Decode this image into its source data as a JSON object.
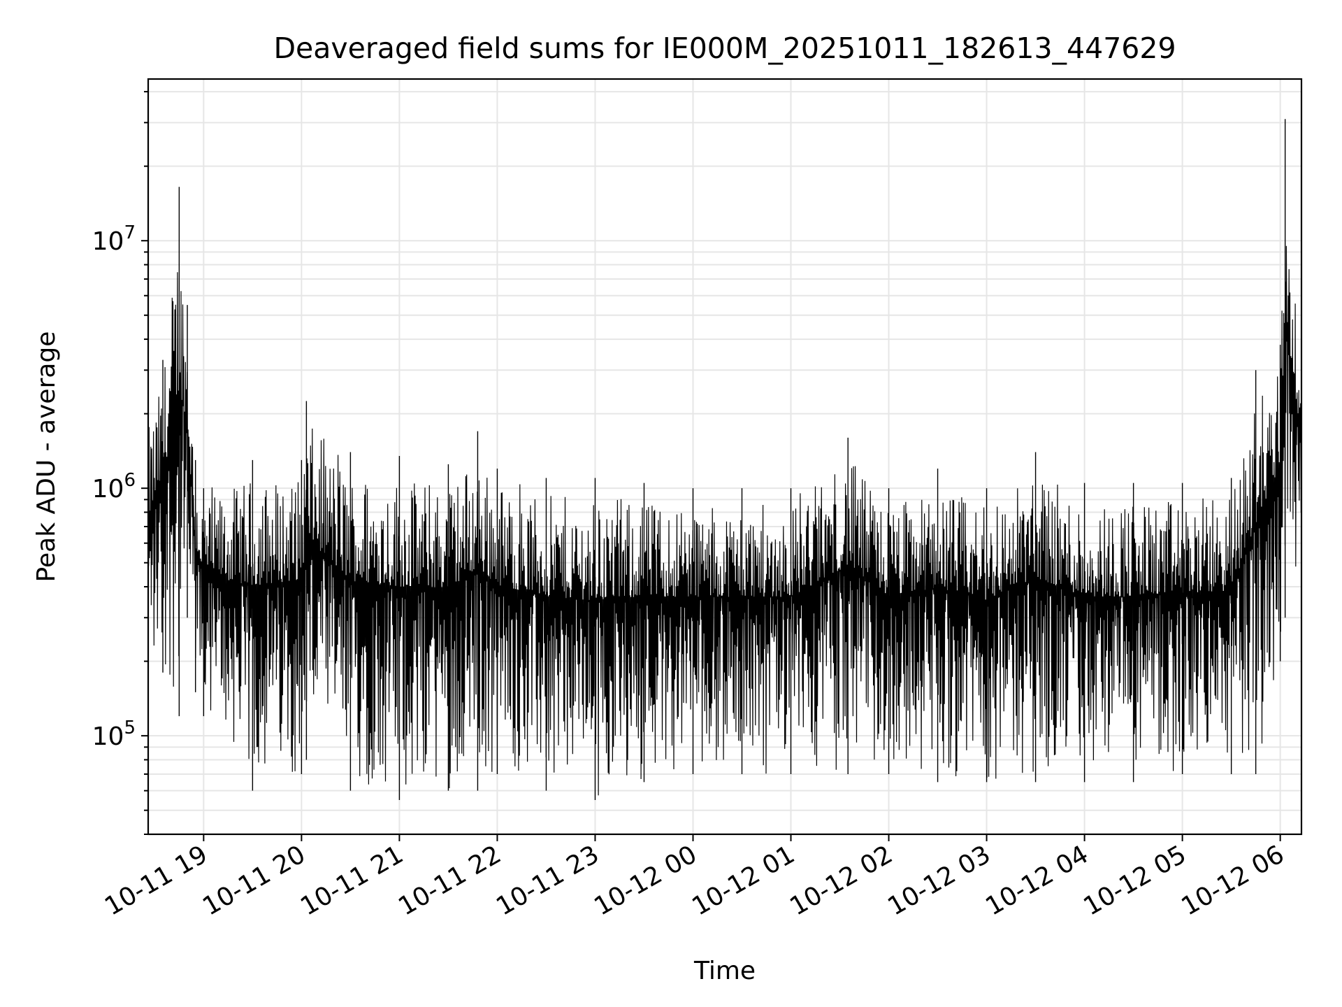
{
  "chart_data": {
    "type": "line",
    "title": "Deaveraged field sums for IE000M_20251011_182613_447629",
    "xlabel": "Time",
    "ylabel": "Peak ADU - average",
    "yscale": "log",
    "grid": true,
    "ylim": [
      40000,
      45000000
    ],
    "xlim": [
      "2025-10-11 18:26",
      "2025-10-12 06:13"
    ],
    "x_ticks": [
      "10-11 19",
      "10-11 20",
      "10-11 21",
      "10-11 22",
      "10-11 23",
      "10-12 00",
      "10-12 01",
      "10-12 02",
      "10-12 03",
      "10-12 04",
      "10-12 05",
      "10-12 06"
    ],
    "y_ticks": [
      {
        "value": 100000,
        "base": "10",
        "exp": "5"
      },
      {
        "value": 1000000,
        "base": "10",
        "exp": "6"
      },
      {
        "value": 10000000,
        "base": "10",
        "exp": "7"
      }
    ],
    "line_color": "#000000",
    "series": [
      {
        "description": "Peak ADU minus average, sampled envelope; the plotted series oscillates between low and high values",
        "x": [
          "2025-10-11 18:26",
          "2025-10-11 18:35",
          "2025-10-11 18:45",
          "2025-10-11 18:50",
          "2025-10-11 18:55",
          "2025-10-11 19:00",
          "2025-10-11 19:30",
          "2025-10-11 20:00",
          "2025-10-11 20:03",
          "2025-10-11 20:30",
          "2025-10-11 21:00",
          "2025-10-11 21:30",
          "2025-10-11 21:48",
          "2025-10-11 22:00",
          "2025-10-11 22:30",
          "2025-10-11 23:00",
          "2025-10-11 23:30",
          "2025-10-12 00:00",
          "2025-10-12 00:30",
          "2025-10-12 01:00",
          "2025-10-12 01:35",
          "2025-10-12 02:00",
          "2025-10-12 02:30",
          "2025-10-12 03:00",
          "2025-10-12 03:30",
          "2025-10-12 04:00",
          "2025-10-12 04:30",
          "2025-10-12 05:00",
          "2025-10-12 05:30",
          "2025-10-12 05:45",
          "2025-10-12 06:00",
          "2025-10-12 06:03",
          "2025-10-12 06:13"
        ],
        "high": [
          2000000,
          3300000,
          16500000,
          5500000,
          1300000,
          1000000,
          1300000,
          1300000,
          2250000,
          1400000,
          1350000,
          1250000,
          1700000,
          1200000,
          1100000,
          1100000,
          1050000,
          1000000,
          1000000,
          1000000,
          1600000,
          1000000,
          1200000,
          1000000,
          1400000,
          1050000,
          1050000,
          1050000,
          1100000,
          3000000,
          3800000,
          31000000,
          2500000
        ],
        "low": [
          150000,
          180000,
          120000,
          300000,
          150000,
          120000,
          60000,
          70000,
          80000,
          60000,
          55000,
          60000,
          60000,
          70000,
          60000,
          55000,
          65000,
          70000,
          70000,
          70000,
          70000,
          70000,
          65000,
          65000,
          65000,
          65000,
          65000,
          70000,
          70000,
          70000,
          200000,
          300000,
          600000
        ]
      }
    ]
  }
}
